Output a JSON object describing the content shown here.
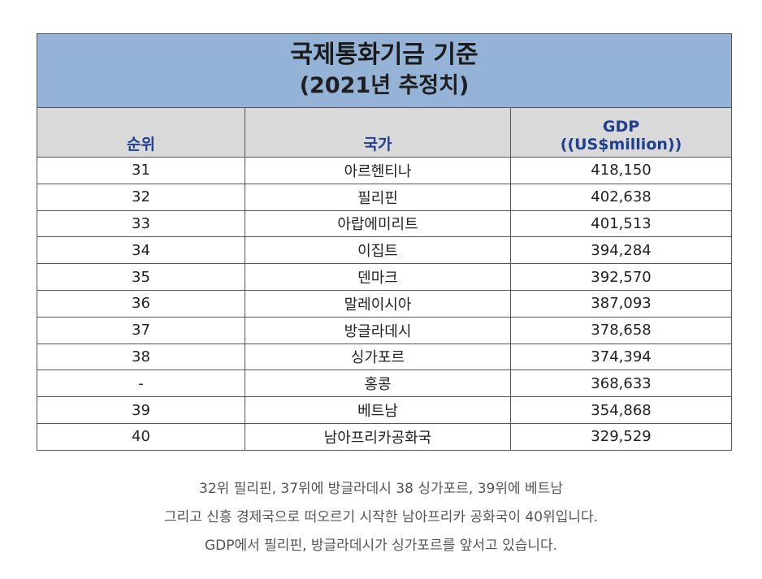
{
  "table": {
    "title_line1": "국제통화기금 기준",
    "title_line2": "(2021년 추정치)",
    "headers": {
      "rank": "순위",
      "country": "국가",
      "gdp_line1": "GDP",
      "gdp_line2": "((US$million))"
    },
    "rows": [
      {
        "rank": "31",
        "country": "아르헨티나",
        "gdp": "418,150"
      },
      {
        "rank": "32",
        "country": "필리핀",
        "gdp": "402,638"
      },
      {
        "rank": "33",
        "country": "아랍에미리트",
        "gdp": "401,513"
      },
      {
        "rank": "34",
        "country": "이집트",
        "gdp": "394,284"
      },
      {
        "rank": "35",
        "country": "덴마크",
        "gdp": "392,570"
      },
      {
        "rank": "36",
        "country": "말레이시아",
        "gdp": "387,093"
      },
      {
        "rank": "37",
        "country": "방글라데시",
        "gdp": "378,658"
      },
      {
        "rank": "38",
        "country": "싱가포르",
        "gdp": "374,394"
      },
      {
        "rank": "-",
        "country": "홍콩",
        "gdp": "368,633"
      },
      {
        "rank": "39",
        "country": "베트남",
        "gdp": "354,868"
      },
      {
        "rank": "40",
        "country": "남아프리카공화국",
        "gdp": "329,529"
      }
    ]
  },
  "footer": {
    "line1": "32위 필리핀, 37위에 방글라데시 38 싱가포르, 39위에 베트남",
    "line2": "그리고 신흥 경제국으로 떠오르기 시작한 남아프리카 공화국이 40위입니다.",
    "line3": "GDP에서 필리핀, 방글라데시가 싱가포르를 앞서고 있습니다."
  }
}
